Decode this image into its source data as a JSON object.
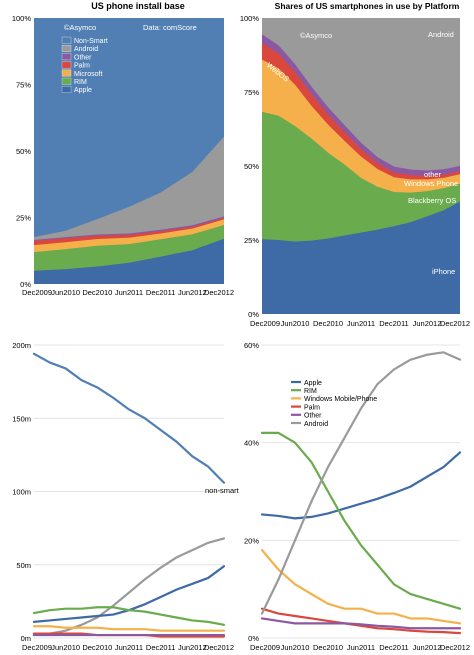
{
  "colors": {
    "apple": "#3e6aa6",
    "rim": "#6aac4d",
    "microsoft": "#f5b04b",
    "palm": "#d9473d",
    "other": "#8a59a2",
    "android": "#9a9a9a",
    "nonsmart": "#517fb4",
    "grid": "#e4e4e4"
  },
  "chart_data": [
    {
      "id": "install-base",
      "type": "area",
      "title": "US phone install base",
      "credit_left": "©Asymco",
      "credit_right": "Data: comScore",
      "x_labels": [
        "Dec2009",
        "Jun2010",
        "Dec2010",
        "Jun2011",
        "Dec2011",
        "Jun2012",
        "Dec2012"
      ],
      "y_ticks": [
        0,
        25,
        50,
        75,
        100
      ],
      "y_tick_labels": [
        "0%",
        "25%",
        "50%",
        "75%",
        "100%"
      ],
      "ylim": [
        0,
        100
      ],
      "legend_position": "top-left",
      "legend": [
        {
          "name": "Non-Smart",
          "key": "nonsmart"
        },
        {
          "name": "Android",
          "key": "android"
        },
        {
          "name": "Other",
          "key": "other"
        },
        {
          "name": "Palm",
          "key": "palm"
        },
        {
          "name": "Microsoft",
          "key": "microsoft"
        },
        {
          "name": "RIM",
          "key": "rim"
        },
        {
          "name": "Apple",
          "key": "apple"
        }
      ],
      "x": [
        0,
        1,
        2,
        3,
        4,
        5,
        6
      ],
      "series": [
        {
          "key": "apple",
          "values": [
            5,
            5.6,
            6.6,
            8,
            10.3,
            12.7,
            17
          ]
        },
        {
          "key": "rim",
          "values": [
            7,
            7.5,
            7.8,
            7,
            6.5,
            6,
            5.2
          ]
        },
        {
          "key": "microsoft",
          "values": [
            2.6,
            2.6,
            2.5,
            2.4,
            2.2,
            2.1,
            2.1
          ]
        },
        {
          "key": "palm",
          "values": [
            1.6,
            1.5,
            1.3,
            1.1,
            0.8,
            0.7,
            0.5
          ]
        },
        {
          "key": "other",
          "values": [
            0.4,
            0.4,
            0.4,
            0.5,
            0.6,
            0.6,
            0.6
          ]
        },
        {
          "key": "android",
          "values": [
            1,
            2.4,
            5.8,
            10,
            14,
            20,
            30
          ]
        }
      ]
    },
    {
      "id": "platform-share",
      "type": "area",
      "title": "Shares of US smartphones in use by Platform",
      "credit": "©Asymco",
      "x_labels": [
        "Dec2009",
        "Jun2010",
        "Dec2010",
        "Jun2011",
        "Dec2011",
        "Jun2012",
        "Dec2012"
      ],
      "y_ticks": [
        0,
        25,
        50,
        75,
        100
      ],
      "y_tick_labels": [
        "0%",
        "25%",
        "50%",
        "75%",
        "100%"
      ],
      "ylim": [
        0,
        100
      ],
      "annotations": [
        {
          "text": "Android",
          "key": "android"
        },
        {
          "text": "WebOS",
          "key": "palm"
        },
        {
          "text": "other",
          "key": "other"
        },
        {
          "text": "Windows Phone",
          "key": "microsoft"
        },
        {
          "text": "Blackberry OS",
          "key": "rim"
        },
        {
          "text": "iPhone",
          "key": "apple"
        }
      ],
      "x": [
        0,
        0.5,
        1,
        1.5,
        2,
        2.5,
        3,
        3.5,
        4,
        4.5,
        5,
        5.5,
        6
      ],
      "series": [
        {
          "key": "apple",
          "values": [
            25.3,
            25,
            24.5,
            24.8,
            25.5,
            26.5,
            27.5,
            28.5,
            29.7,
            31,
            33,
            35,
            38
          ]
        },
        {
          "key": "rim",
          "values": [
            43,
            42,
            39,
            34.5,
            29,
            24,
            18.5,
            14.5,
            11.5,
            10,
            8.5,
            7.5,
            6
          ]
        },
        {
          "key": "microsoft",
          "values": [
            17.7,
            16,
            14,
            11,
            9.5,
            8,
            7.2,
            6,
            5,
            4.5,
            4,
            3.5,
            3.2
          ]
        },
        {
          "key": "palm",
          "values": [
            5.5,
            5,
            4.3,
            4,
            3.5,
            3,
            2.5,
            2,
            1.6,
            1.4,
            1.2,
            1.1,
            1
          ]
        },
        {
          "key": "other",
          "values": [
            3,
            2.8,
            2.6,
            2.5,
            2.4,
            2.3,
            2.2,
            2,
            2,
            1.9,
            1.8,
            1.8,
            1.8
          ]
        }
      ]
    },
    {
      "id": "install-units",
      "type": "line",
      "x_labels": [
        "Dec2009",
        "Jun2010",
        "Dec2010",
        "Jun2011",
        "Dec2011",
        "Jun2012",
        "Dec2012"
      ],
      "y_ticks": [
        0,
        50,
        100,
        150,
        200
      ],
      "y_tick_labels": [
        "0m",
        "50m",
        "100m",
        "150m",
        "200m"
      ],
      "ylim": [
        0,
        200
      ],
      "series_label": "non-smart",
      "x": [
        0,
        0.5,
        1,
        1.5,
        2,
        2.5,
        3,
        3.5,
        4,
        4.5,
        5,
        5.5,
        6
      ],
      "series": [
        {
          "key": "nonsmart",
          "values": [
            194,
            188,
            184,
            176,
            171,
            164,
            156,
            150,
            142,
            134,
            124,
            117,
            106
          ]
        },
        {
          "key": "android",
          "values": [
            2,
            3,
            5,
            9,
            14,
            22,
            31,
            40,
            48,
            55,
            60,
            65,
            68
          ]
        },
        {
          "key": "apple",
          "values": [
            11,
            12,
            13,
            14,
            15,
            16,
            19,
            23,
            28,
            33,
            37,
            41,
            49
          ]
        },
        {
          "key": "rim",
          "values": [
            17,
            19,
            20,
            20,
            21,
            21,
            19,
            18,
            16,
            14,
            12,
            11,
            9
          ]
        },
        {
          "key": "microsoft",
          "values": [
            8,
            8,
            7,
            7,
            7,
            6,
            6,
            6,
            5,
            5,
            5,
            5,
            5
          ]
        },
        {
          "key": "palm",
          "values": [
            3,
            3,
            3,
            3,
            2,
            2,
            2,
            2,
            1,
            1,
            1,
            1,
            1
          ]
        },
        {
          "key": "other",
          "values": [
            2,
            2,
            2,
            2,
            2,
            2,
            2,
            2,
            2,
            2,
            2,
            2,
            2
          ]
        }
      ]
    },
    {
      "id": "platform-lines",
      "type": "line",
      "x_labels": [
        "Dec2009",
        "Jun2010",
        "Dec2010",
        "Jun2011",
        "Dec2011",
        "Jun2012",
        "Dec2012"
      ],
      "y_ticks": [
        0,
        20,
        40,
        60
      ],
      "y_tick_labels": [
        "0%",
        "20%",
        "40%",
        "60%"
      ],
      "ylim": [
        0,
        60
      ],
      "legend_position": "top-left",
      "legend": [
        {
          "name": "Apple",
          "key": "apple"
        },
        {
          "name": "RIM",
          "key": "rim"
        },
        {
          "name": "Windows Mobile/Phone",
          "key": "microsoft"
        },
        {
          "name": "Palm",
          "key": "palm"
        },
        {
          "name": "Other",
          "key": "other"
        },
        {
          "name": "Android",
          "key": "android"
        }
      ],
      "x": [
        0,
        0.5,
        1,
        1.5,
        2,
        2.5,
        3,
        3.5,
        4,
        4.5,
        5,
        5.5,
        6
      ],
      "series": [
        {
          "key": "apple",
          "values": [
            25.3,
            25,
            24.5,
            24.8,
            25.5,
            26.5,
            27.5,
            28.5,
            29.7,
            31,
            33,
            35,
            38
          ]
        },
        {
          "key": "rim",
          "values": [
            42,
            42,
            40,
            36,
            30,
            24,
            19,
            15,
            11,
            9,
            8,
            7,
            6
          ]
        },
        {
          "key": "microsoft",
          "values": [
            18,
            14,
            11,
            9,
            7,
            6,
            6,
            5,
            5,
            4,
            4,
            3.5,
            3
          ]
        },
        {
          "key": "palm",
          "values": [
            6,
            5,
            4.5,
            4,
            3.5,
            3,
            2.5,
            2,
            1.8,
            1.5,
            1.3,
            1.2,
            1
          ]
        },
        {
          "key": "other",
          "values": [
            4,
            3.5,
            3,
            3,
            3,
            3,
            2.8,
            2.5,
            2.3,
            2,
            2,
            2,
            2
          ]
        },
        {
          "key": "android",
          "values": [
            5,
            12,
            20,
            28,
            35,
            41,
            47,
            52,
            55,
            57,
            58,
            58.5,
            57
          ]
        }
      ]
    }
  ]
}
